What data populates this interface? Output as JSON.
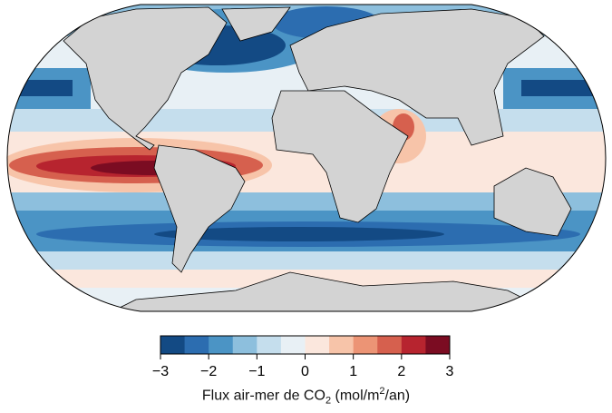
{
  "colorbar": {
    "label_prefix": "Flux air-mer de CO",
    "label_sub": "2",
    "label_mid": " (mol/m",
    "label_sup": "2",
    "label_suffix": "/an)",
    "ticks": [
      "−3",
      "−2",
      "−1",
      "0",
      "1",
      "2",
      "3"
    ],
    "range": [
      -3,
      3
    ],
    "step": 0.5,
    "colors": [
      "#134a84",
      "#2c6db0",
      "#4b94c5",
      "#8dbfdd",
      "#c5deed",
      "#e8f0f5",
      "#fbe7dd",
      "#f7c4a9",
      "#ec9475",
      "#d6604e",
      "#b7242f",
      "#7b0c22"
    ]
  },
  "land_color": "#d3d3d3",
  "ocean_background": "#e8f0f5"
}
